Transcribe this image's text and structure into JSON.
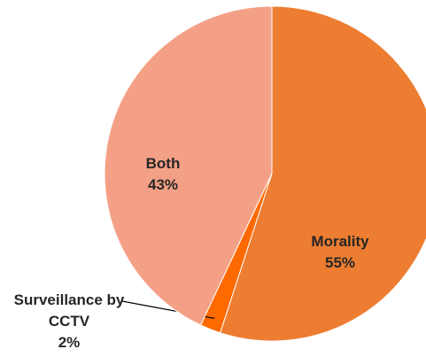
{
  "chart_data": {
    "type": "pie",
    "categories": [
      "Morality",
      "Surveillance by CCTV",
      "Both"
    ],
    "values": [
      55,
      2,
      43
    ],
    "value_labels": [
      "55%",
      "2%",
      "43%"
    ],
    "colors": [
      "#ED7D31",
      "#FF6A00",
      "#F4A086"
    ]
  }
}
